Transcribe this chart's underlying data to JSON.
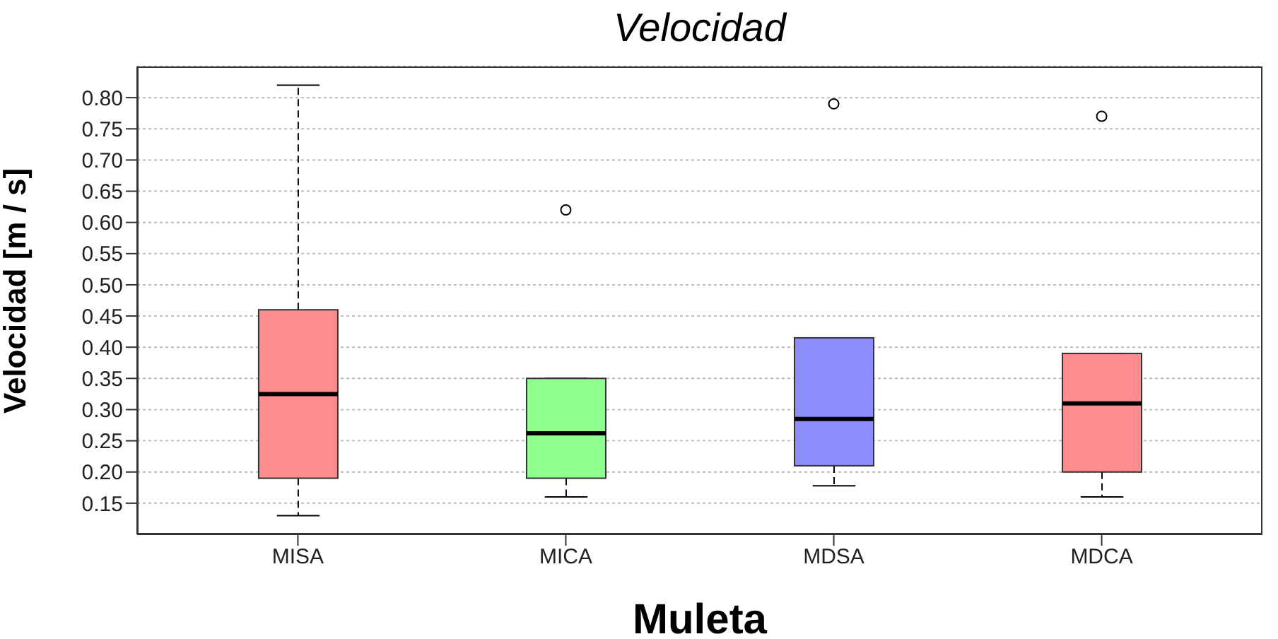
{
  "chart_data": {
    "type": "box",
    "title": "Velocidad",
    "xlabel": "Muleta",
    "ylabel": "Velocidad [m / s]",
    "categories": [
      "MISA",
      "MICA",
      "MDSA",
      "MDCA"
    ],
    "colors": [
      "#ff8c8c",
      "#8cff8c",
      "#8c8cff",
      "#ff8c8c"
    ],
    "boxes": [
      {
        "low": 0.13,
        "q1": 0.19,
        "median": 0.325,
        "q3": 0.46,
        "high": 0.82
      },
      {
        "low": 0.16,
        "q1": 0.19,
        "median": 0.262,
        "q3": 0.35,
        "high": 0.35,
        "outliers": [
          0.62
        ]
      },
      {
        "low": 0.178,
        "q1": 0.21,
        "median": 0.285,
        "q3": 0.415,
        "high": 0.415,
        "outliers": [
          0.79
        ]
      },
      {
        "low": 0.16,
        "q1": 0.2,
        "median": 0.31,
        "q3": 0.39,
        "high": 0.39,
        "outliers": [
          0.77
        ]
      }
    ],
    "ylim": [
      0.1,
      0.85
    ],
    "yticks": [
      0.15,
      {
        "value": 0.2,
        "label": "0.20"
      },
      0.25,
      {
        "value": 0.3,
        "label": "0.30"
      },
      0.35,
      {
        "value": 0.4,
        "label": "0.40"
      },
      0.45,
      {
        "value": 0.5,
        "label": "0.50"
      },
      0.55,
      {
        "value": 0.6,
        "label": "0.60"
      },
      0.65,
      {
        "value": 0.7,
        "label": "0.70"
      },
      0.75,
      {
        "value": 0.8,
        "label": "0.80"
      }
    ],
    "grid": "y"
  }
}
